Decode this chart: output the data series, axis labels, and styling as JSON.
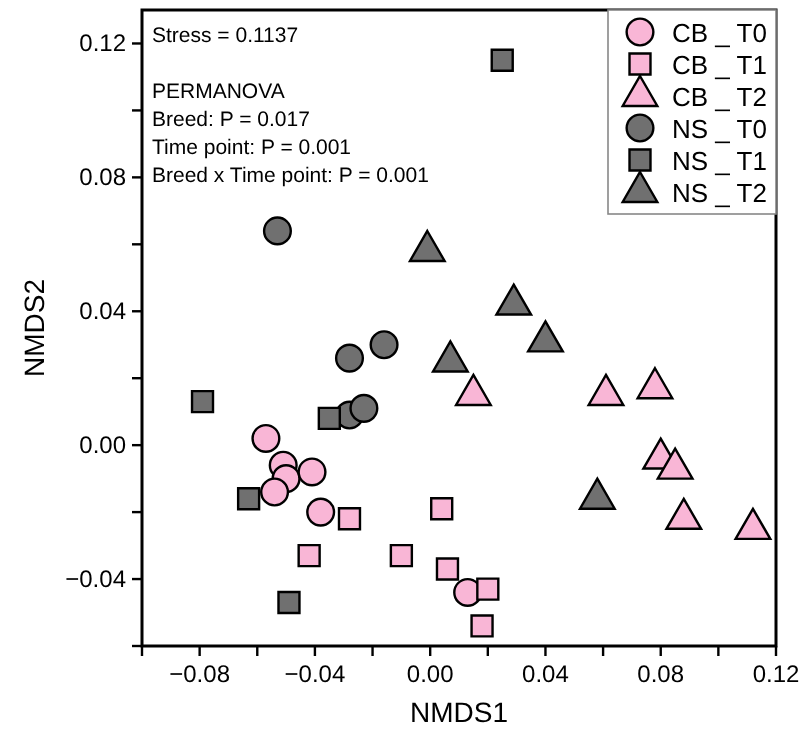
{
  "chart_data": {
    "type": "scatter",
    "xlabel": "NMDS1",
    "ylabel": "NMDS2",
    "annotations": [
      "Stress = 0.1137",
      "PERMANOVA",
      "Breed: P = 0.017",
      "Time point: P = 0.001",
      "Breed x Time point: P = 0.001"
    ],
    "xlim": [
      -0.1,
      0.12
    ],
    "ylim": [
      -0.06,
      0.13
    ],
    "xticks": [
      {
        "value": -0.1,
        "label": null
      },
      {
        "value": -0.08,
        "label": "−0.08"
      },
      {
        "value": -0.06,
        "label": null
      },
      {
        "value": -0.04,
        "label": "−0.04"
      },
      {
        "value": -0.02,
        "label": null
      },
      {
        "value": 0,
        "label": "0.00"
      },
      {
        "value": 0.02,
        "label": null
      },
      {
        "value": 0.04,
        "label": "0.04"
      },
      {
        "value": 0.06,
        "label": null
      },
      {
        "value": 0.08,
        "label": "0.08"
      },
      {
        "value": 0.1,
        "label": null
      },
      {
        "value": 0.12,
        "label": "0.12"
      }
    ],
    "yticks": [
      {
        "value": -0.06,
        "label": null
      },
      {
        "value": -0.04,
        "label": "−0.04"
      },
      {
        "value": -0.02,
        "label": null
      },
      {
        "value": 0,
        "label": "0.00"
      },
      {
        "value": 0.02,
        "label": null
      },
      {
        "value": 0.04,
        "label": "0.04"
      },
      {
        "value": 0.06,
        "label": null
      },
      {
        "value": 0.08,
        "label": "0.08"
      },
      {
        "value": 0.1,
        "label": null
      },
      {
        "value": 0.12,
        "label": "0.12"
      }
    ],
    "grid": false,
    "legend": "top right",
    "series": [
      {
        "name": "CB _ T0",
        "color": "#f9b6d6",
        "marker": "circle",
        "x": [
          -0.057,
          -0.051,
          -0.05,
          -0.054,
          -0.041,
          -0.038,
          0.013
        ],
        "values": [
          0.002,
          -0.006,
          -0.01,
          -0.014,
          -0.008,
          -0.02,
          -0.044
        ]
      },
      {
        "name": "CB _ T1",
        "color": "#f9b6d6",
        "marker": "square",
        "x": [
          -0.028,
          -0.042,
          -0.01,
          0.004,
          0.006,
          0.02,
          0.018
        ],
        "values": [
          -0.022,
          -0.033,
          -0.033,
          -0.019,
          -0.037,
          -0.043,
          -0.054
        ]
      },
      {
        "name": "CB _ T2",
        "color": "#f9b6d6",
        "marker": "triangle",
        "x": [
          0.015,
          0.061,
          0.078,
          0.08,
          0.085,
          0.088,
          0.112
        ],
        "values": [
          0.015,
          0.015,
          0.017,
          -0.004,
          -0.007,
          -0.022,
          -0.025
        ]
      },
      {
        "name": "NS _ T0",
        "color": "#707070",
        "marker": "circle",
        "x": [
          -0.053,
          -0.028,
          -0.016,
          -0.028,
          -0.023
        ],
        "values": [
          0.064,
          0.026,
          0.03,
          0.009,
          0.011
        ]
      },
      {
        "name": "NS _ T1",
        "color": "#707070",
        "marker": "square",
        "x": [
          0.025,
          -0.079,
          -0.035,
          -0.063,
          -0.049
        ],
        "values": [
          0.115,
          0.013,
          0.008,
          -0.016,
          -0.047
        ]
      },
      {
        "name": "NS _ T2",
        "color": "#707070",
        "marker": "triangle",
        "x": [
          -0.001,
          0.029,
          0.04,
          0.007,
          0.058
        ],
        "values": [
          0.058,
          0.042,
          0.031,
          0.025,
          -0.016
        ]
      }
    ]
  }
}
